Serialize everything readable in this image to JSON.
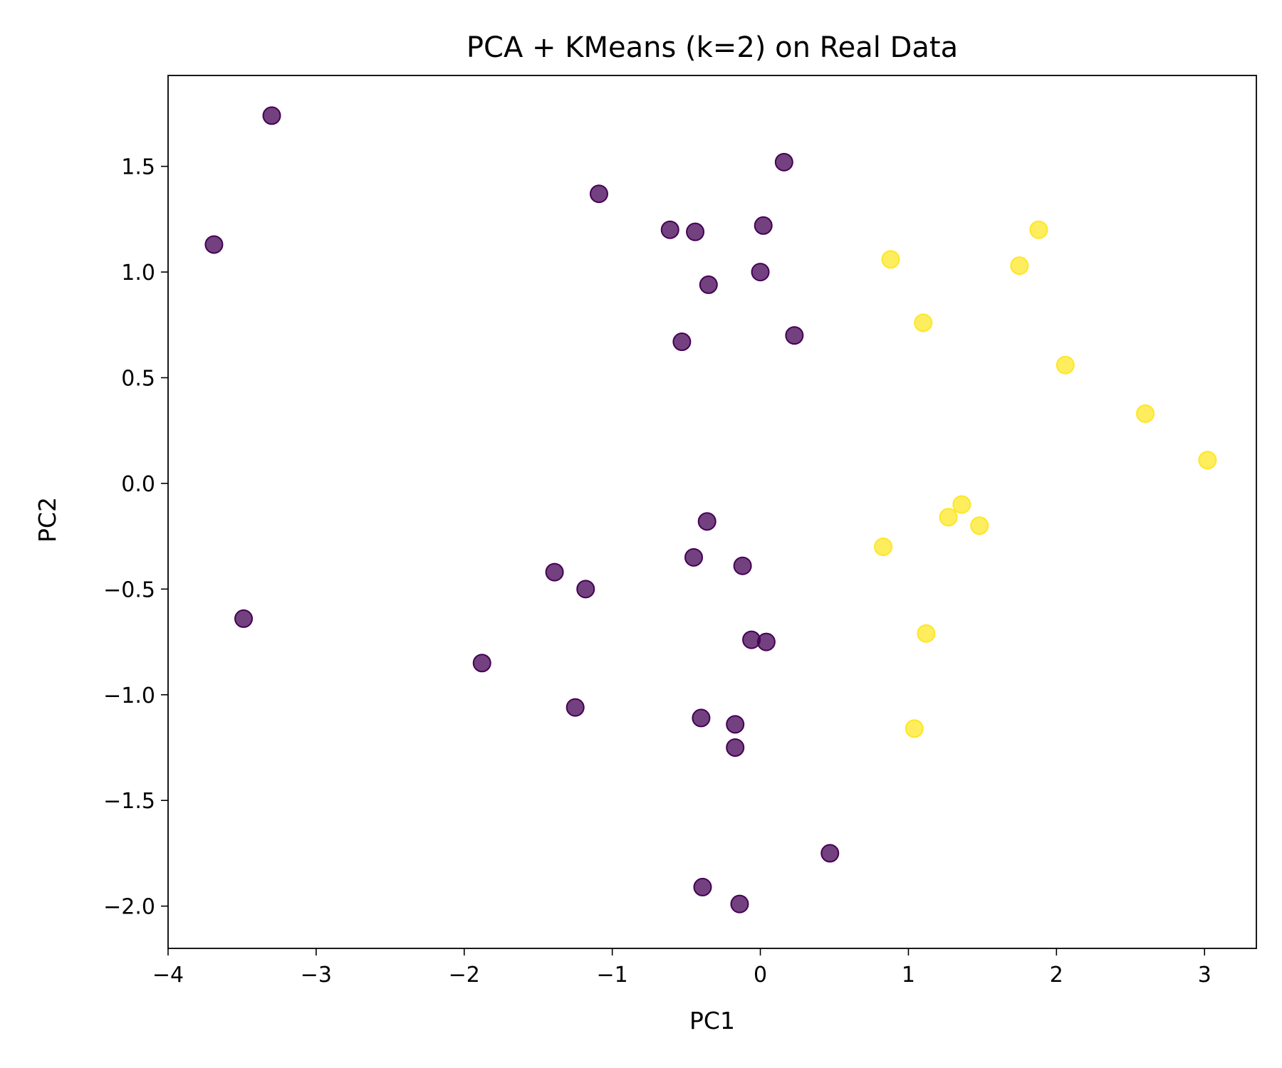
{
  "chart_data": {
    "type": "scatter",
    "title": "PCA + KMeans (k=2) on Real Data",
    "xlabel": "PC1",
    "ylabel": "PC2",
    "xlim": [
      -4.0,
      3.35
    ],
    "ylim": [
      -2.2,
      1.93
    ],
    "xticks": [
      {
        "value": -4,
        "label": "−4"
      },
      {
        "value": -3,
        "label": "−3"
      },
      {
        "value": -2,
        "label": "−2"
      },
      {
        "value": -1,
        "label": "−1"
      },
      {
        "value": 0,
        "label": "0"
      },
      {
        "value": 1,
        "label": "1"
      },
      {
        "value": 2,
        "label": "2"
      },
      {
        "value": 3,
        "label": "3"
      }
    ],
    "yticks": [
      {
        "value": -2.0,
        "label": "−2.0"
      },
      {
        "value": -1.5,
        "label": "−1.5"
      },
      {
        "value": -1.0,
        "label": "−1.0"
      },
      {
        "value": -0.5,
        "label": "−0.5"
      },
      {
        "value": 0.0,
        "label": "0.0"
      },
      {
        "value": 0.5,
        "label": "0.5"
      },
      {
        "value": 1.0,
        "label": "1.0"
      },
      {
        "value": 1.5,
        "label": "1.5"
      }
    ],
    "grid": false,
    "cluster_colors": {
      "0": "#440154",
      "1": "#fde725"
    },
    "points": [
      {
        "x": -3.3,
        "y": 1.74,
        "cluster": 0
      },
      {
        "x": -3.69,
        "y": 1.13,
        "cluster": 0
      },
      {
        "x": -3.49,
        "y": -0.64,
        "cluster": 0
      },
      {
        "x": -1.09,
        "y": 1.37,
        "cluster": 0
      },
      {
        "x": -0.61,
        "y": 1.2,
        "cluster": 0
      },
      {
        "x": -0.44,
        "y": 1.19,
        "cluster": 0
      },
      {
        "x": 0.16,
        "y": 1.52,
        "cluster": 0
      },
      {
        "x": 0.02,
        "y": 1.22,
        "cluster": 0
      },
      {
        "x": 0.0,
        "y": 1.0,
        "cluster": 0
      },
      {
        "x": -0.35,
        "y": 0.94,
        "cluster": 0
      },
      {
        "x": -0.53,
        "y": 0.67,
        "cluster": 0
      },
      {
        "x": 0.23,
        "y": 0.7,
        "cluster": 0
      },
      {
        "x": -0.36,
        "y": -0.18,
        "cluster": 0
      },
      {
        "x": -0.45,
        "y": -0.35,
        "cluster": 0
      },
      {
        "x": -0.12,
        "y": -0.39,
        "cluster": 0
      },
      {
        "x": -1.39,
        "y": -0.42,
        "cluster": 0
      },
      {
        "x": -1.18,
        "y": -0.5,
        "cluster": 0
      },
      {
        "x": -0.06,
        "y": -0.74,
        "cluster": 0
      },
      {
        "x": 0.04,
        "y": -0.75,
        "cluster": 0
      },
      {
        "x": -1.88,
        "y": -0.85,
        "cluster": 0
      },
      {
        "x": -1.25,
        "y": -1.06,
        "cluster": 0
      },
      {
        "x": -0.4,
        "y": -1.11,
        "cluster": 0
      },
      {
        "x": -0.17,
        "y": -1.14,
        "cluster": 0
      },
      {
        "x": -0.17,
        "y": -1.25,
        "cluster": 0
      },
      {
        "x": 0.47,
        "y": -1.75,
        "cluster": 0
      },
      {
        "x": -0.39,
        "y": -1.91,
        "cluster": 0
      },
      {
        "x": -0.14,
        "y": -1.99,
        "cluster": 0
      },
      {
        "x": 0.88,
        "y": 1.06,
        "cluster": 1
      },
      {
        "x": 1.1,
        "y": 0.76,
        "cluster": 1
      },
      {
        "x": 1.75,
        "y": 1.03,
        "cluster": 1
      },
      {
        "x": 1.88,
        "y": 1.2,
        "cluster": 1
      },
      {
        "x": 2.06,
        "y": 0.56,
        "cluster": 1
      },
      {
        "x": 2.6,
        "y": 0.33,
        "cluster": 1
      },
      {
        "x": 3.02,
        "y": 0.11,
        "cluster": 1
      },
      {
        "x": 1.36,
        "y": -0.1,
        "cluster": 1
      },
      {
        "x": 1.27,
        "y": -0.16,
        "cluster": 1
      },
      {
        "x": 1.48,
        "y": -0.2,
        "cluster": 1
      },
      {
        "x": 0.83,
        "y": -0.3,
        "cluster": 1
      },
      {
        "x": 1.12,
        "y": -0.71,
        "cluster": 1
      },
      {
        "x": 1.04,
        "y": -1.16,
        "cluster": 1
      }
    ]
  }
}
